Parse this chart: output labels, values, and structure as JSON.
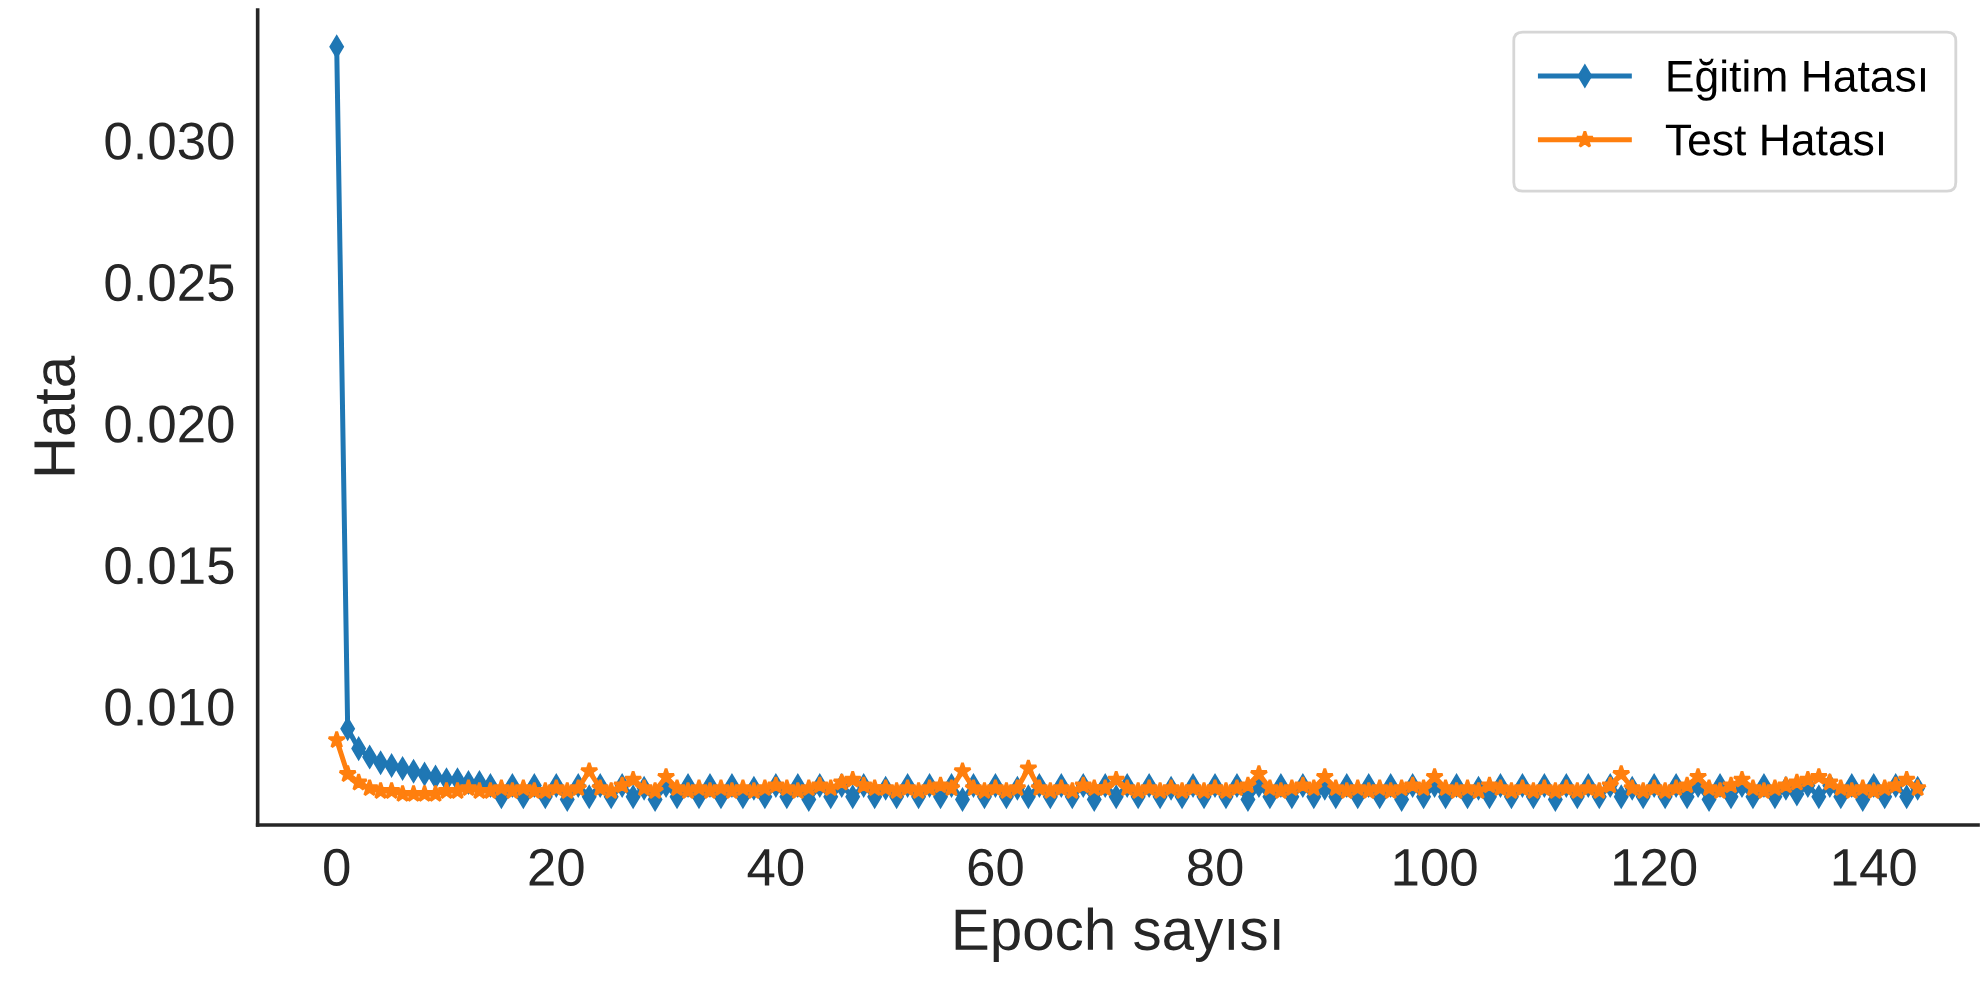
{
  "chart_data": {
    "type": "line",
    "xlabel": "Epoch sayısı",
    "ylabel": "Hata",
    "x": [
      0,
      1,
      2,
      3,
      4,
      5,
      6,
      7,
      8,
      9,
      10,
      11,
      12,
      13,
      14,
      15,
      16,
      17,
      18,
      19,
      20,
      21,
      22,
      23,
      24,
      25,
      26,
      27,
      28,
      29,
      30,
      31,
      32,
      33,
      34,
      35,
      36,
      37,
      38,
      39,
      40,
      41,
      42,
      43,
      44,
      45,
      46,
      47,
      48,
      49,
      50,
      51,
      52,
      53,
      54,
      55,
      56,
      57,
      58,
      59,
      60,
      61,
      62,
      63,
      64,
      65,
      66,
      67,
      68,
      69,
      70,
      71,
      72,
      73,
      74,
      75,
      76,
      77,
      78,
      79,
      80,
      81,
      82,
      83,
      84,
      85,
      86,
      87,
      88,
      89,
      90,
      91,
      92,
      93,
      94,
      95,
      96,
      97,
      98,
      99,
      100,
      101,
      102,
      103,
      104,
      105,
      106,
      107,
      108,
      109,
      110,
      111,
      112,
      113,
      114,
      115,
      116,
      117,
      118,
      119,
      120,
      121,
      122,
      123,
      124,
      125,
      126,
      127,
      128,
      129,
      130,
      131,
      132,
      133,
      134,
      135,
      136,
      137,
      138,
      139,
      140,
      141,
      142,
      143,
      144
    ],
    "xlim": [
      -7.2,
      149.5
    ],
    "xticks": [
      0,
      20,
      40,
      60,
      80,
      100,
      120,
      140
    ],
    "ylim": [
      0.0058,
      0.0346
    ],
    "yticks": [
      {
        "value": 0.01,
        "label": "0.010"
      },
      {
        "value": 0.015,
        "label": "0.015"
      },
      {
        "value": 0.02,
        "label": "0.020"
      },
      {
        "value": 0.025,
        "label": "0.025"
      },
      {
        "value": 0.03,
        "label": "0.030"
      }
    ],
    "grid": false,
    "legend": "top right",
    "series": [
      {
        "name": "Eğitim Hatası",
        "color": "#1f77b4",
        "marker": "diamond",
        "line_style": "solid",
        "values": [
          0.0333,
          0.0092,
          0.0085,
          0.0082,
          0.008,
          0.0079,
          0.0078,
          0.0077,
          0.0076,
          0.0075,
          0.0074,
          0.0074,
          0.0073,
          0.0073,
          0.0072,
          0.0068,
          0.0072,
          0.0068,
          0.0072,
          0.0068,
          0.0072,
          0.0067,
          0.0072,
          0.0068,
          0.0072,
          0.0068,
          0.0072,
          0.0068,
          0.0071,
          0.0067,
          0.0072,
          0.0068,
          0.0072,
          0.0068,
          0.0072,
          0.0068,
          0.0072,
          0.0068,
          0.0071,
          0.0068,
          0.0072,
          0.0068,
          0.0072,
          0.0067,
          0.0072,
          0.0068,
          0.0072,
          0.0068,
          0.0072,
          0.0068,
          0.0071,
          0.0068,
          0.0072,
          0.0068,
          0.0072,
          0.0068,
          0.0072,
          0.0067,
          0.0072,
          0.0068,
          0.0072,
          0.0068,
          0.0071,
          0.0068,
          0.0072,
          0.0068,
          0.0072,
          0.0068,
          0.0072,
          0.0067,
          0.0072,
          0.0068,
          0.0072,
          0.0068,
          0.0072,
          0.0068,
          0.0071,
          0.0068,
          0.0072,
          0.0068,
          0.0072,
          0.0068,
          0.0072,
          0.0067,
          0.0072,
          0.0068,
          0.0072,
          0.0068,
          0.0072,
          0.0068,
          0.0071,
          0.0068,
          0.0072,
          0.0068,
          0.0072,
          0.0068,
          0.0072,
          0.0067,
          0.0072,
          0.0068,
          0.0072,
          0.0068,
          0.0072,
          0.0068,
          0.0071,
          0.0068,
          0.0072,
          0.0068,
          0.0072,
          0.0068,
          0.0072,
          0.0067,
          0.0072,
          0.0068,
          0.0072,
          0.0068,
          0.0072,
          0.0068,
          0.0071,
          0.0068,
          0.0072,
          0.0068,
          0.0072,
          0.0068,
          0.0072,
          0.0067,
          0.0072,
          0.0068,
          0.0072,
          0.0068,
          0.0072,
          0.0068,
          0.0071,
          0.0069,
          0.0072,
          0.0068,
          0.0072,
          0.0068,
          0.0072,
          0.0067,
          0.0072,
          0.0068,
          0.0072,
          0.0068,
          0.0071
        ]
      },
      {
        "name": "Test Hatası",
        "color": "#ff7f0e",
        "marker": "star",
        "line_style": "solid",
        "values": [
          0.0088,
          0.0076,
          0.0073,
          0.0071,
          0.007,
          0.007,
          0.0069,
          0.0069,
          0.0069,
          0.0069,
          0.007,
          0.007,
          0.0071,
          0.007,
          0.007,
          0.0071,
          0.007,
          0.0071,
          0.007,
          0.007,
          0.0071,
          0.007,
          0.0071,
          0.0077,
          0.0071,
          0.007,
          0.0072,
          0.0074,
          0.0071,
          0.007,
          0.0075,
          0.0071,
          0.007,
          0.0071,
          0.007,
          0.0071,
          0.007,
          0.0071,
          0.007,
          0.0071,
          0.0072,
          0.0071,
          0.007,
          0.0071,
          0.0072,
          0.0071,
          0.0073,
          0.0074,
          0.0072,
          0.0071,
          0.0071,
          0.007,
          0.0071,
          0.007,
          0.0071,
          0.0072,
          0.0071,
          0.0077,
          0.0071,
          0.007,
          0.0071,
          0.007,
          0.0071,
          0.0078,
          0.0071,
          0.007,
          0.0071,
          0.007,
          0.0072,
          0.0071,
          0.0071,
          0.0074,
          0.0071,
          0.007,
          0.0071,
          0.007,
          0.0071,
          0.007,
          0.0071,
          0.007,
          0.0071,
          0.007,
          0.0071,
          0.0072,
          0.0076,
          0.0071,
          0.007,
          0.0071,
          0.0072,
          0.0071,
          0.0075,
          0.0071,
          0.007,
          0.0071,
          0.007,
          0.0071,
          0.007,
          0.0071,
          0.0072,
          0.0071,
          0.0075,
          0.0071,
          0.007,
          0.0071,
          0.007,
          0.0072,
          0.0071,
          0.007,
          0.0071,
          0.007,
          0.0071,
          0.007,
          0.0071,
          0.007,
          0.0071,
          0.007,
          0.0072,
          0.0076,
          0.0071,
          0.007,
          0.0071,
          0.007,
          0.0071,
          0.0072,
          0.0075,
          0.0071,
          0.007,
          0.0072,
          0.0074,
          0.0071,
          0.007,
          0.0071,
          0.0072,
          0.0073,
          0.0074,
          0.0075,
          0.0073,
          0.0071,
          0.007,
          0.0071,
          0.007,
          0.0071,
          0.0072,
          0.0074,
          0.0071
        ]
      }
    ]
  }
}
